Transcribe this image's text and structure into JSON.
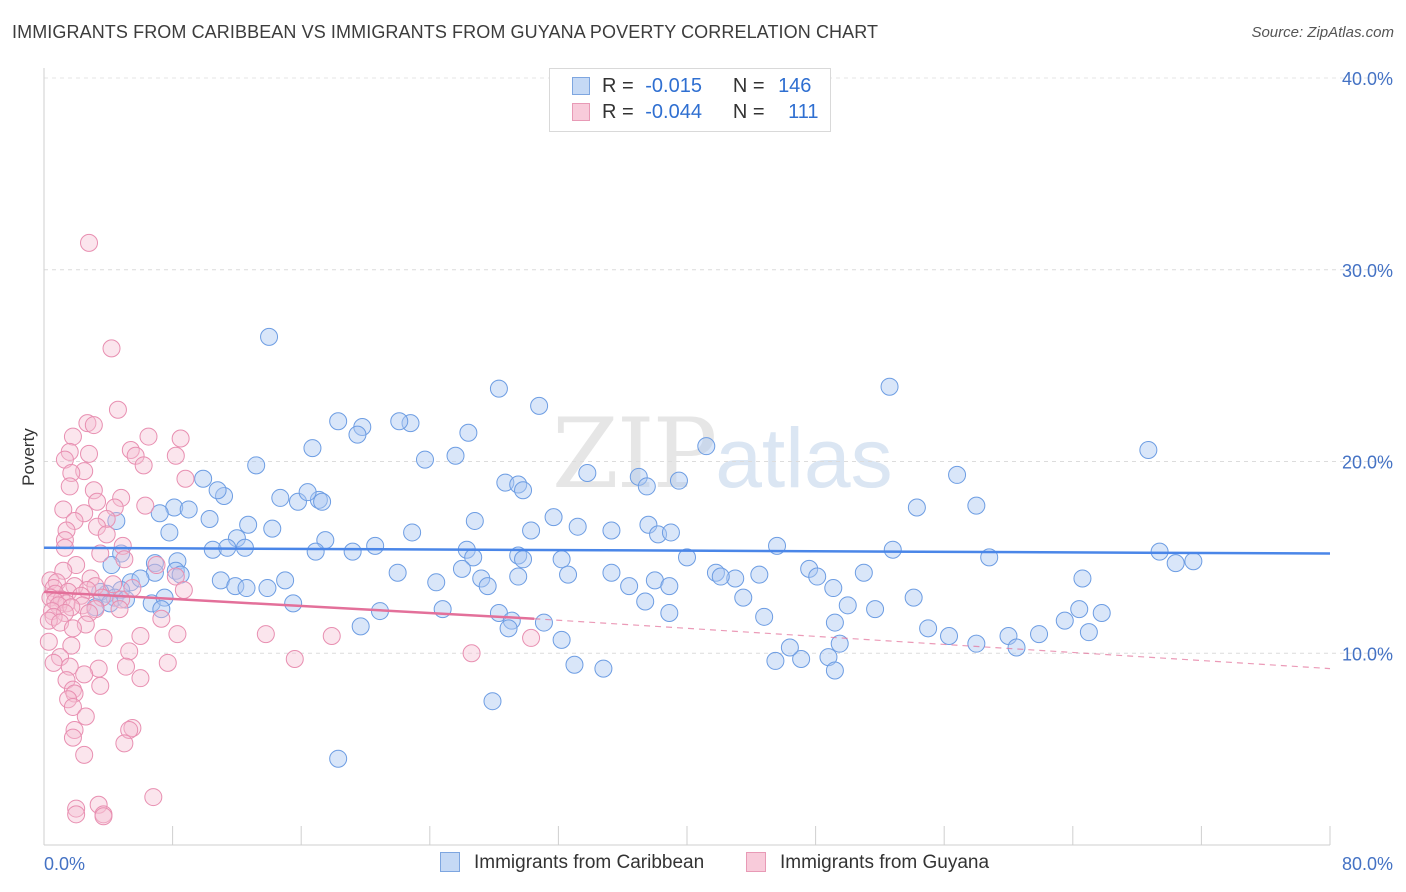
{
  "title": "IMMIGRANTS FROM CARIBBEAN VS IMMIGRANTS FROM GUYANA POVERTY CORRELATION CHART",
  "source": "Source: ZipAtlas.com",
  "watermark": {
    "zip": "ZIP",
    "atlas": "atlas"
  },
  "legend": {
    "r_label": "R =",
    "n_label": "N =",
    "series": [
      {
        "name": "Immigrants from Caribbean",
        "r": "-0.015",
        "n": "146",
        "color": "#4a86e8"
      },
      {
        "name": "Immigrants from Guyana",
        "r": "-0.044",
        "n": "111",
        "color": "#e3709a"
      }
    ]
  },
  "chart_data": {
    "type": "scatter",
    "title": "IMMIGRANTS FROM CARIBBEAN VS IMMIGRANTS FROM GUYANA POVERTY CORRELATION CHART",
    "xlabel": "",
    "ylabel": "Poverty",
    "xlim": [
      0,
      80
    ],
    "ylim": [
      0,
      40
    ],
    "x_tick_labels": [
      "0.0%",
      "80.0%"
    ],
    "y_ticks": [
      10,
      20,
      30,
      40
    ],
    "y_tick_labels": [
      "10.0%",
      "20.0%",
      "30.0%",
      "40.0%"
    ],
    "grid": "horizontal dashed",
    "legend_position": "top-center",
    "series": [
      {
        "name": "Immigrants from Caribbean",
        "color": "#4a86e8",
        "trend": {
          "x": [
            0,
            80
          ],
          "y": [
            15.5,
            15.2
          ]
        },
        "points": [
          [
            14.0,
            26.5
          ],
          [
            28.3,
            23.8
          ],
          [
            30.8,
            22.9
          ],
          [
            52.6,
            23.9
          ],
          [
            18.3,
            22.1
          ],
          [
            22.8,
            22.0
          ],
          [
            19.8,
            21.8
          ],
          [
            22.1,
            22.1
          ],
          [
            26.4,
            21.5
          ],
          [
            19.5,
            21.4
          ],
          [
            41.2,
            20.8
          ],
          [
            16.7,
            20.7
          ],
          [
            25.6,
            20.3
          ],
          [
            23.7,
            20.1
          ],
          [
            13.2,
            19.8
          ],
          [
            68.7,
            20.6
          ],
          [
            9.9,
            19.1
          ],
          [
            56.8,
            19.3
          ],
          [
            33.8,
            19.4
          ],
          [
            37.0,
            19.2
          ],
          [
            37.5,
            18.7
          ],
          [
            39.5,
            19.0
          ],
          [
            28.7,
            18.9
          ],
          [
            11.2,
            18.2
          ],
          [
            14.7,
            18.1
          ],
          [
            15.8,
            17.9
          ],
          [
            17.1,
            18.0
          ],
          [
            16.4,
            18.4
          ],
          [
            29.5,
            18.8
          ],
          [
            29.8,
            18.5
          ],
          [
            17.3,
            17.9
          ],
          [
            10.8,
            18.5
          ],
          [
            54.3,
            17.6
          ],
          [
            58.0,
            17.7
          ],
          [
            8.1,
            17.6
          ],
          [
            9.0,
            17.5
          ],
          [
            26.8,
            16.9
          ],
          [
            30.3,
            16.4
          ],
          [
            33.2,
            16.6
          ],
          [
            31.7,
            17.1
          ],
          [
            37.6,
            16.7
          ],
          [
            12.7,
            16.7
          ],
          [
            7.2,
            17.3
          ],
          [
            10.3,
            17.0
          ],
          [
            14.2,
            16.5
          ],
          [
            4.5,
            16.9
          ],
          [
            22.9,
            16.3
          ],
          [
            35.3,
            16.4
          ],
          [
            38.2,
            16.2
          ],
          [
            39.0,
            16.3
          ],
          [
            7.8,
            16.3
          ],
          [
            12.0,
            16.0
          ],
          [
            17.5,
            15.9
          ],
          [
            20.6,
            15.6
          ],
          [
            26.3,
            15.4
          ],
          [
            26.7,
            15.0
          ],
          [
            26.0,
            14.4
          ],
          [
            29.5,
            15.1
          ],
          [
            29.8,
            14.9
          ],
          [
            32.2,
            14.9
          ],
          [
            16.9,
            15.3
          ],
          [
            19.2,
            15.3
          ],
          [
            10.5,
            15.4
          ],
          [
            11.4,
            15.5
          ],
          [
            4.8,
            15.2
          ],
          [
            8.3,
            14.8
          ],
          [
            6.9,
            14.7
          ],
          [
            12.5,
            15.5
          ],
          [
            45.6,
            15.6
          ],
          [
            52.8,
            15.4
          ],
          [
            47.6,
            14.4
          ],
          [
            40.0,
            15.0
          ],
          [
            35.3,
            14.2
          ],
          [
            36.4,
            13.5
          ],
          [
            32.6,
            14.1
          ],
          [
            29.5,
            14.0
          ],
          [
            22.0,
            14.2
          ],
          [
            24.4,
            13.7
          ],
          [
            27.2,
            13.9
          ],
          [
            27.6,
            13.5
          ],
          [
            8.2,
            14.3
          ],
          [
            11.0,
            13.8
          ],
          [
            11.9,
            13.5
          ],
          [
            12.6,
            13.4
          ],
          [
            13.9,
            13.4
          ],
          [
            15.0,
            13.8
          ],
          [
            8.5,
            14.1
          ],
          [
            4.2,
            14.6
          ],
          [
            6.9,
            14.2
          ],
          [
            5.4,
            13.7
          ],
          [
            6.0,
            13.9
          ],
          [
            4.8,
            13.3
          ],
          [
            3.9,
            13.1
          ],
          [
            4.4,
            12.9
          ],
          [
            3.5,
            13.2
          ],
          [
            4.1,
            12.6
          ],
          [
            3.2,
            12.4
          ],
          [
            6.7,
            12.6
          ],
          [
            5.1,
            12.8
          ],
          [
            7.5,
            12.9
          ],
          [
            7.3,
            12.3
          ],
          [
            15.5,
            12.6
          ],
          [
            20.9,
            12.2
          ],
          [
            24.8,
            12.3
          ],
          [
            28.3,
            12.1
          ],
          [
            29.1,
            11.7
          ],
          [
            19.7,
            11.4
          ],
          [
            28.9,
            11.3
          ],
          [
            31.1,
            11.6
          ],
          [
            32.2,
            10.7
          ],
          [
            38.9,
            12.1
          ],
          [
            37.4,
            12.7
          ],
          [
            43.5,
            12.9
          ],
          [
            44.8,
            11.9
          ],
          [
            49.2,
            11.6
          ],
          [
            50.0,
            12.5
          ],
          [
            51.7,
            12.3
          ],
          [
            54.1,
            12.9
          ],
          [
            49.1,
            13.4
          ],
          [
            48.1,
            14.0
          ],
          [
            41.8,
            14.2
          ],
          [
            38.0,
            13.8
          ],
          [
            38.9,
            13.5
          ],
          [
            44.5,
            14.1
          ],
          [
            43.0,
            13.9
          ],
          [
            42.1,
            14.0
          ],
          [
            51.0,
            14.2
          ],
          [
            58.8,
            15.0
          ],
          [
            64.6,
            13.9
          ],
          [
            70.4,
            14.7
          ],
          [
            71.5,
            14.8
          ],
          [
            69.4,
            15.3
          ],
          [
            64.4,
            12.3
          ],
          [
            65.8,
            12.1
          ],
          [
            63.5,
            11.7
          ],
          [
            65.0,
            11.1
          ],
          [
            61.9,
            11.0
          ],
          [
            60.0,
            10.9
          ],
          [
            60.5,
            10.3
          ],
          [
            55.0,
            11.3
          ],
          [
            56.3,
            10.9
          ],
          [
            58.0,
            10.5
          ],
          [
            49.5,
            10.5
          ],
          [
            48.8,
            9.8
          ],
          [
            49.2,
            9.1
          ],
          [
            45.5,
            9.6
          ],
          [
            47.1,
            9.7
          ],
          [
            46.4,
            10.3
          ],
          [
            34.8,
            9.2
          ],
          [
            33.0,
            9.4
          ],
          [
            27.9,
            7.5
          ],
          [
            18.3,
            4.5
          ]
        ]
      },
      {
        "name": "Immigrants from Guyana",
        "color": "#e3709a",
        "trend": {
          "x": [
            0,
            30.5
          ],
          "y": [
            13.2,
            11.8
          ]
        },
        "trend_extension": {
          "x": [
            30.5,
            80
          ],
          "y": [
            11.8,
            9.2
          ]
        },
        "points": [
          [
            2.8,
            31.4
          ],
          [
            4.2,
            25.9
          ],
          [
            4.6,
            22.7
          ],
          [
            2.7,
            22.0
          ],
          [
            3.1,
            21.9
          ],
          [
            1.8,
            21.3
          ],
          [
            8.5,
            21.2
          ],
          [
            6.5,
            21.3
          ],
          [
            1.6,
            20.5
          ],
          [
            2.8,
            20.4
          ],
          [
            8.2,
            20.3
          ],
          [
            1.3,
            20.1
          ],
          [
            5.4,
            20.6
          ],
          [
            5.7,
            20.3
          ],
          [
            6.2,
            19.8
          ],
          [
            2.5,
            19.5
          ],
          [
            1.7,
            19.4
          ],
          [
            8.8,
            19.1
          ],
          [
            3.1,
            18.5
          ],
          [
            4.8,
            18.1
          ],
          [
            1.6,
            18.7
          ],
          [
            3.3,
            17.9
          ],
          [
            4.4,
            17.6
          ],
          [
            6.3,
            17.7
          ],
          [
            1.2,
            17.5
          ],
          [
            2.5,
            17.3
          ],
          [
            3.9,
            17.0
          ],
          [
            1.9,
            16.9
          ],
          [
            3.3,
            16.6
          ],
          [
            1.4,
            16.4
          ],
          [
            3.9,
            16.2
          ],
          [
            4.9,
            15.6
          ],
          [
            1.3,
            15.9
          ],
          [
            1.3,
            15.5
          ],
          [
            3.5,
            15.2
          ],
          [
            5.0,
            14.9
          ],
          [
            2.0,
            14.6
          ],
          [
            7.0,
            14.6
          ],
          [
            1.2,
            14.3
          ],
          [
            8.2,
            14.0
          ],
          [
            0.4,
            13.8
          ],
          [
            2.9,
            13.9
          ],
          [
            0.8,
            13.7
          ],
          [
            4.3,
            13.6
          ],
          [
            3.2,
            13.5
          ],
          [
            1.9,
            13.5
          ],
          [
            0.6,
            13.4
          ],
          [
            5.5,
            13.4
          ],
          [
            8.7,
            13.3
          ],
          [
            2.7,
            13.3
          ],
          [
            1.5,
            13.2
          ],
          [
            0.7,
            13.1
          ],
          [
            2.3,
            13.0
          ],
          [
            0.4,
            12.9
          ],
          [
            1.1,
            12.8
          ],
          [
            3.6,
            12.9
          ],
          [
            4.8,
            12.8
          ],
          [
            0.7,
            12.7
          ],
          [
            1.4,
            12.6
          ],
          [
            2.4,
            12.5
          ],
          [
            0.9,
            12.5
          ],
          [
            1.7,
            12.4
          ],
          [
            3.2,
            12.3
          ],
          [
            4.7,
            12.3
          ],
          [
            0.5,
            12.2
          ],
          [
            1.3,
            12.1
          ],
          [
            2.8,
            12.1
          ],
          [
            0.6,
            11.9
          ],
          [
            0.3,
            11.7
          ],
          [
            7.3,
            11.8
          ],
          [
            1.0,
            11.6
          ],
          [
            2.6,
            11.5
          ],
          [
            1.8,
            11.3
          ],
          [
            13.8,
            11.0
          ],
          [
            17.9,
            10.9
          ],
          [
            8.3,
            11.0
          ],
          [
            6.0,
            10.9
          ],
          [
            3.7,
            10.8
          ],
          [
            0.3,
            10.6
          ],
          [
            1.7,
            10.4
          ],
          [
            5.3,
            10.1
          ],
          [
            1.0,
            9.8
          ],
          [
            15.6,
            9.7
          ],
          [
            26.6,
            10.0
          ],
          [
            30.3,
            10.8
          ],
          [
            0.6,
            9.5
          ],
          [
            1.6,
            9.3
          ],
          [
            3.4,
            9.2
          ],
          [
            5.1,
            9.3
          ],
          [
            7.7,
            9.5
          ],
          [
            2.5,
            8.9
          ],
          [
            1.4,
            8.6
          ],
          [
            6.0,
            8.7
          ],
          [
            3.5,
            8.3
          ],
          [
            1.8,
            8.1
          ],
          [
            1.9,
            7.9
          ],
          [
            1.5,
            7.6
          ],
          [
            1.8,
            7.2
          ],
          [
            2.6,
            6.7
          ],
          [
            5.5,
            6.1
          ],
          [
            5.3,
            6.0
          ],
          [
            1.9,
            6.0
          ],
          [
            1.8,
            5.6
          ],
          [
            5.0,
            5.3
          ],
          [
            2.5,
            4.7
          ],
          [
            6.8,
            2.5
          ],
          [
            3.4,
            2.1
          ],
          [
            2.0,
            1.9
          ],
          [
            3.7,
            1.6
          ],
          [
            2.0,
            1.6
          ],
          [
            3.7,
            1.5
          ]
        ]
      }
    ]
  }
}
